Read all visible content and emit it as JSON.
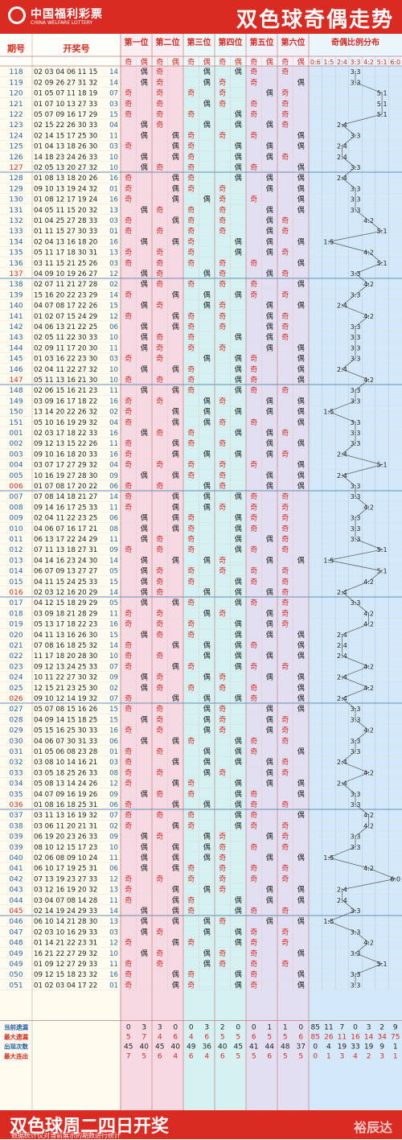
{
  "header": {
    "logo_cn": "中国福利彩票",
    "logo_en": "CHINA WELFARE LOTTERY",
    "title": "双色球奇偶走势"
  },
  "colors": {
    "brand": "#d92b22",
    "pos1": "#f7d9e3",
    "pos2": "#f7d9e3",
    "pos3": "#d6f1f2",
    "pos4": "#d6f1f2",
    "pos5": "#e3dff2",
    "pos6": "#e3dff2",
    "dist": "#d3e8f8",
    "odd": "#d92b22",
    "even": "#222222"
  },
  "chart_data": {
    "type": "table",
    "columns": {
      "period": "期号",
      "numbers": "开奖号"
    },
    "positions": [
      "第一位",
      "第二位",
      "第三位",
      "第四位",
      "第五位",
      "第六位"
    ],
    "odd_label": "奇",
    "even_label": "偶",
    "dist_title": "奇偶比例分布",
    "ratios": [
      "0:6",
      "1:5",
      "2:4",
      "3:3",
      "4:2",
      "5:1",
      "6:0"
    ],
    "rows": [
      {
        "p": "118",
        "n": "02 03 04 06 11 15",
        "b": "14"
      },
      {
        "p": "119",
        "n": "02 09 26 27 31 32",
        "b": "14"
      },
      {
        "p": "120",
        "n": "01 05 07 11 18 19",
        "b": "07"
      },
      {
        "p": "121",
        "n": "01 07 10 13 27 33",
        "b": "03"
      },
      {
        "p": "122",
        "n": "05 07 09 16 17 29",
        "b": "15"
      },
      {
        "p": "123",
        "n": "02 15 22 26 30 33",
        "b": "04"
      },
      {
        "p": "124",
        "n": "02 14 15 17 25 30",
        "b": "11"
      },
      {
        "p": "125",
        "n": "01 04 13 18 26 30",
        "b": "03"
      },
      {
        "p": "126",
        "n": "14 18 23 24 26 33",
        "b": "10"
      },
      {
        "p": "127",
        "n": "02 05 13 20 27 32",
        "b": "10"
      },
      {
        "p": "128",
        "n": "01 08 13 18 20 26",
        "b": "16"
      },
      {
        "p": "129",
        "n": "09 10 13 19 24 32",
        "b": "01"
      },
      {
        "p": "130",
        "n": "01 08 12 17 19 24",
        "b": "16"
      },
      {
        "p": "131",
        "n": "04 05 11 15 20 32",
        "b": "13"
      },
      {
        "p": "132",
        "n": "01 04 25 27 28 33",
        "b": "03"
      },
      {
        "p": "133",
        "n": "01 11 15 27 30 33",
        "b": "01"
      },
      {
        "p": "134",
        "n": "02 04 13 16 18 20",
        "b": "16"
      },
      {
        "p": "135",
        "n": "05 11 17 18 30 31",
        "b": "13"
      },
      {
        "p": "136",
        "n": "03 11 15 21 25 26",
        "b": "03"
      },
      {
        "p": "137",
        "n": "04 09 10 19 26 27",
        "b": "12"
      },
      {
        "p": "138",
        "n": "02 07 11 21 27 28",
        "b": "02"
      },
      {
        "p": "139",
        "n": "15 16 20 22 23 29",
        "b": "14"
      },
      {
        "p": "140",
        "n": "04 07 08 17 22 26",
        "b": "15"
      },
      {
        "p": "141",
        "n": "01 02 07 15 24 29",
        "b": "12"
      },
      {
        "p": "142",
        "n": "04 06 13 21 22 25",
        "b": "06"
      },
      {
        "p": "143",
        "n": "02 05 11 22 30 33",
        "b": "10"
      },
      {
        "p": "144",
        "n": "02 09 11 17 20 30",
        "b": "11"
      },
      {
        "p": "145",
        "n": "01 03 16 22 23 30",
        "b": "03"
      },
      {
        "p": "146",
        "n": "02 04 11 22 27 32",
        "b": "10"
      },
      {
        "p": "147",
        "n": "05 11 13 16 21 30",
        "b": "10"
      },
      {
        "p": "148",
        "n": "02 06 15 16 21 23",
        "b": "11"
      },
      {
        "p": "149",
        "n": "03 09 16 17 18 22",
        "b": "16"
      },
      {
        "p": "150",
        "n": "13 14 20 22 26 32",
        "b": "02"
      },
      {
        "p": "151",
        "n": "05 10 16 19 29 32",
        "b": "04"
      },
      {
        "p": "001",
        "n": "02 03 17 18 22 33",
        "b": "16"
      },
      {
        "p": "002",
        "n": "09 12 13 15 22 26",
        "b": "11"
      },
      {
        "p": "003",
        "n": "09 10 16 18 20 33",
        "b": "16"
      },
      {
        "p": "004",
        "n": "03 07 17 27 29 32",
        "b": "04"
      },
      {
        "p": "005",
        "n": "10 16 19 27 28 30",
        "b": "09"
      },
      {
        "p": "006",
        "n": "01 07 08 17 20 22",
        "b": "06"
      },
      {
        "p": "007",
        "n": "07 08 14 18 21 27",
        "b": "14"
      },
      {
        "p": "008",
        "n": "09 14 16 17 25 33",
        "b": "11"
      },
      {
        "p": "009",
        "n": "02 04 11 22 23 25",
        "b": "06"
      },
      {
        "p": "010",
        "n": "04 06 07 16 17 21",
        "b": "08"
      },
      {
        "p": "011",
        "n": "06 13 17 22 24 29",
        "b": "11"
      },
      {
        "p": "012",
        "n": "07 11 13 18 27 31",
        "b": "09"
      },
      {
        "p": "013",
        "n": "04 14 16 23 24 30",
        "b": "14"
      },
      {
        "p": "014",
        "n": "06 07 09 13 27 27",
        "b": "05"
      },
      {
        "p": "015",
        "n": "04 11 15 24 25 33",
        "b": "15"
      },
      {
        "p": "016",
        "n": "02 03 12 16 20 29",
        "b": "14"
      },
      {
        "p": "017",
        "n": "04 12 15 18 29 29",
        "b": "05"
      },
      {
        "p": "018",
        "n": "03 09 18 21 28 29",
        "b": "11"
      },
      {
        "p": "019",
        "n": "05 13 17 18 22 23",
        "b": "16"
      },
      {
        "p": "020",
        "n": "04 11 13 16 26 30",
        "b": "15"
      },
      {
        "p": "021",
        "n": "07 08 16 18 25 32",
        "b": "14"
      },
      {
        "p": "022",
        "n": "11 17 18 20 28 30",
        "b": "10"
      },
      {
        "p": "023",
        "n": "09 12 13 24 25 33",
        "b": "07"
      },
      {
        "p": "024",
        "n": "10 11 22 27 30 32",
        "b": "09"
      },
      {
        "p": "025",
        "n": "12 15 21 23 25 30",
        "b": "02"
      },
      {
        "p": "026",
        "n": "09 10 12 14 19 32",
        "b": "07"
      },
      {
        "p": "027",
        "n": "05 07 08 15 16 26",
        "b": "15"
      },
      {
        "p": "028",
        "n": "04 09 14 15 18 25",
        "b": "15"
      },
      {
        "p": "029",
        "n": "05 15 16 25 30 33",
        "b": "16"
      },
      {
        "p": "030",
        "n": "04 06 07 30 31 33",
        "b": "06"
      },
      {
        "p": "031",
        "n": "01 05 06 08 23 28",
        "b": "01"
      },
      {
        "p": "032",
        "n": "03 08 10 14 16 21",
        "b": "03"
      },
      {
        "p": "033",
        "n": "03 05 18 25 26 33",
        "b": "08"
      },
      {
        "p": "034",
        "n": "05 08 13 14 24 26",
        "b": "12"
      },
      {
        "p": "035",
        "n": "04 07 09 16 19 26",
        "b": "09"
      },
      {
        "p": "036",
        "n": "01 08 16 18 25 31",
        "b": "06"
      },
      {
        "p": "037",
        "n": "03 11 13 16 19 32",
        "b": "07"
      },
      {
        "p": "038",
        "n": "03 06 11 20 21 31",
        "b": "02"
      },
      {
        "p": "039",
        "n": "06 19 20 23 26 33",
        "b": "09"
      },
      {
        "p": "039",
        "n": "08 10 12 15 17 23",
        "b": "10"
      },
      {
        "p": "040",
        "n": "02 06 08 09 10 24",
        "b": "11"
      },
      {
        "p": "041",
        "n": "06 10 17 19 25 31",
        "b": "06"
      },
      {
        "p": "042",
        "n": "07 13 19 23 27 33",
        "b": "12"
      },
      {
        "p": "043",
        "n": "03 12 16 19 20 32",
        "b": "13"
      },
      {
        "p": "044",
        "n": "03 04 07 08 14 28",
        "b": "11"
      },
      {
        "p": "045",
        "n": "02 14 19 24 29 33",
        "b": "14"
      },
      {
        "p": "046",
        "n": "06 10 14 21 28 30",
        "b": "13"
      },
      {
        "p": "047",
        "n": "02 03 10 16 29 33",
        "b": "03"
      },
      {
        "p": "048",
        "n": "01 14 21 22 23 31",
        "b": "12"
      },
      {
        "p": "049",
        "n": "16 21 22 27 29 32",
        "b": "10"
      },
      {
        "p": "049",
        "n": "01 09 12 27 29 33",
        "b": "11"
      },
      {
        "p": "050",
        "n": "09 12 15 18 23 32",
        "b": "16"
      },
      {
        "p": "051",
        "n": "01 02 03 04 17 22",
        "b": "01"
      }
    ],
    "stats": [
      {
        "label": "当前遗漏",
        "vals": [
          0,
          3,
          3,
          0,
          0,
          3,
          2,
          0,
          0,
          1,
          1,
          0
        ],
        "dist": [
          85,
          11,
          7,
          0,
          3,
          2,
          9
        ]
      },
      {
        "label": "最大遗漏",
        "vals": [
          5,
          7,
          4,
          6,
          4,
          6,
          5,
          5,
          6,
          5,
          5,
          6
        ],
        "dist": [
          85,
          26,
          11,
          16,
          14,
          34,
          75
        ]
      },
      {
        "label": "出现次数",
        "vals": [
          45,
          40,
          45,
          40,
          49,
          36,
          40,
          45,
          41,
          44,
          48,
          37
        ],
        "dist": [
          0,
          4,
          19,
          33,
          19,
          9,
          1
        ]
      },
      {
        "label": "最大连出",
        "vals": [
          7,
          5,
          6,
          4,
          6,
          4,
          6,
          5,
          5,
          6,
          5,
          5
        ],
        "dist": [
          0,
          1,
          3,
          4,
          2,
          3,
          1
        ]
      }
    ]
  },
  "footer": {
    "title": "双色球周二四日开奖",
    "note": "数据统计仅对当前展示的期数进行统计",
    "brand": "裕辰达"
  }
}
